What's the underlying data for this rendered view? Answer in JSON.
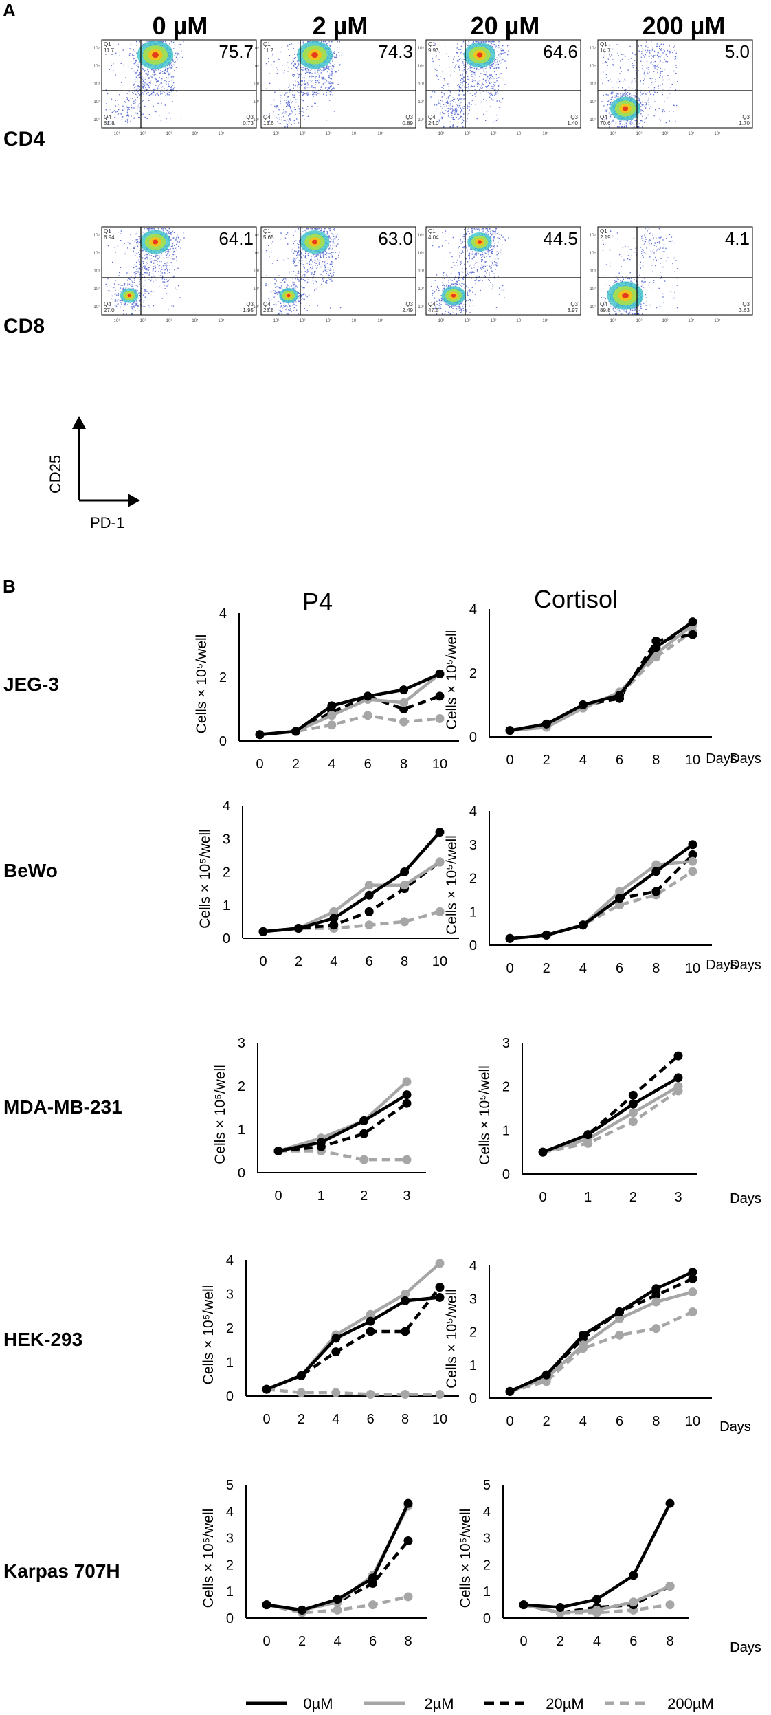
{
  "figure": {
    "panel_a_label": "A",
    "panel_b_label": "B",
    "concentrations": [
      "0 µM",
      "2 µM",
      "20 µM",
      "200 µM"
    ],
    "flow_rows": [
      "CD4",
      "CD8"
    ],
    "flow_axes": {
      "y": "CD25",
      "x": "PD-1"
    },
    "flow_quadrants": [
      [
        {
          "main": "75.7",
          "q1": "11.7",
          "q4": "61.8",
          "q3": "0.73"
        },
        {
          "main": "74.3",
          "q1": "11.2",
          "q4": "13.6",
          "q3": "0.89"
        },
        {
          "main": "64.6",
          "q1": "9.93",
          "q4": "24.0",
          "q3": "1.40"
        },
        {
          "main": "5.0",
          "q1": "14.7",
          "q4": "70.6",
          "q3": "1.70"
        }
      ],
      [
        {
          "main": "64.1",
          "q1": "6.94",
          "q4": "27.0",
          "q3": "1.95"
        },
        {
          "main": "63.0",
          "q1": "5.65",
          "q4": "28.8",
          "q3": "2.49"
        },
        {
          "main": "44.5",
          "q1": "4.04",
          "q4": "47.5",
          "q3": "3.97"
        },
        {
          "main": "4.1",
          "q1": "2.19",
          "q4": "89.8",
          "q3": "3.63"
        }
      ]
    ],
    "quadrant_labels": {
      "q1": "Q1",
      "q4": "Q4",
      "q3": "Q3"
    },
    "flow_axis_ticks": [
      "10¹",
      "10²",
      "10³",
      "10⁴",
      "10⁵"
    ],
    "hormones": [
      "P4",
      "Cortisol"
    ],
    "y_axis_label": "Cells × 10⁵/well",
    "x_axis_label": "Days",
    "legend_labels": [
      "0µM",
      "2µM",
      "20µM",
      "200µM"
    ],
    "series_colors": [
      "#000000",
      "#a6a6a6",
      "#000000",
      "#a6a6a6"
    ]
  },
  "chart_data": [
    {
      "type": "line",
      "cell_line": "JEG-3",
      "hormone": "P4",
      "xlabel": "Days",
      "ylabel": "Cells × 10⁵/well",
      "x": [
        0,
        2,
        4,
        6,
        8,
        10
      ],
      "xticks": [
        "0",
        "2",
        "4",
        "6",
        "8",
        "10"
      ],
      "ylim": [
        0,
        4
      ],
      "yticks": [
        "0",
        "2",
        "4"
      ],
      "series": [
        {
          "name": "0µM",
          "values": [
            0.2,
            0.3,
            1.1,
            1.4,
            1.6,
            2.1
          ]
        },
        {
          "name": "2µM",
          "values": [
            0.2,
            0.3,
            0.8,
            1.3,
            1.2,
            2.1
          ]
        },
        {
          "name": "20µM",
          "values": [
            0.2,
            0.3,
            0.9,
            1.4,
            1.0,
            1.4
          ]
        },
        {
          "name": "200µM",
          "values": [
            0.2,
            0.3,
            0.5,
            0.8,
            0.6,
            0.7
          ]
        }
      ]
    },
    {
      "type": "line",
      "cell_line": "JEG-3",
      "hormone": "Cortisol",
      "xlabel": "Days",
      "ylabel": "Cells × 10⁵/well",
      "x": [
        0,
        2,
        4,
        6,
        8,
        10
      ],
      "xticks": [
        "0",
        "2",
        "4",
        "6",
        "8",
        "10"
      ],
      "ylim": [
        0,
        4
      ],
      "yticks": [
        "0",
        "2",
        "4"
      ],
      "series": [
        {
          "name": "0µM",
          "values": [
            0.2,
            0.4,
            1.0,
            1.3,
            2.8,
            3.6
          ]
        },
        {
          "name": "2µM",
          "values": [
            0.2,
            0.3,
            0.9,
            1.4,
            2.6,
            3.5
          ]
        },
        {
          "name": "20µM",
          "values": [
            0.2,
            0.4,
            1.0,
            1.2,
            3.0,
            3.2
          ]
        },
        {
          "name": "200µM",
          "values": [
            0.2,
            0.3,
            0.9,
            1.3,
            2.5,
            3.3
          ]
        }
      ]
    },
    {
      "type": "line",
      "cell_line": "BeWo",
      "hormone": "P4",
      "xlabel": "Days",
      "ylabel": "Cells × 10⁵/well",
      "x": [
        0,
        2,
        4,
        6,
        8,
        10
      ],
      "xticks": [
        "0",
        "2",
        "4",
        "6",
        "8",
        "10"
      ],
      "ylim": [
        0,
        4
      ],
      "yticks": [
        "0",
        "1",
        "2",
        "3",
        "4"
      ],
      "series": [
        {
          "name": "0µM",
          "values": [
            0.2,
            0.3,
            0.6,
            1.3,
            2.0,
            3.2
          ]
        },
        {
          "name": "2µM",
          "values": [
            0.2,
            0.3,
            0.8,
            1.6,
            1.6,
            2.3
          ]
        },
        {
          "name": "20µM",
          "values": [
            0.2,
            0.3,
            0.4,
            0.8,
            1.5,
            2.3
          ]
        },
        {
          "name": "200µM",
          "values": [
            0.2,
            0.3,
            0.3,
            0.4,
            0.5,
            0.8
          ]
        }
      ]
    },
    {
      "type": "line",
      "cell_line": "BeWo",
      "hormone": "Cortisol",
      "xlabel": "Days",
      "ylabel": "Cells × 10⁵/well",
      "x": [
        0,
        2,
        4,
        6,
        8,
        10
      ],
      "xticks": [
        "0",
        "2",
        "4",
        "6",
        "8",
        "10"
      ],
      "ylim": [
        0,
        4
      ],
      "yticks": [
        "0",
        "1",
        "2",
        "3",
        "4"
      ],
      "series": [
        {
          "name": "0µM",
          "values": [
            0.2,
            0.3,
            0.6,
            1.4,
            2.2,
            3.0
          ]
        },
        {
          "name": "2µM",
          "values": [
            0.2,
            0.3,
            0.6,
            1.6,
            2.4,
            2.5
          ]
        },
        {
          "name": "20µM",
          "values": [
            0.2,
            0.3,
            0.6,
            1.4,
            1.6,
            2.7
          ]
        },
        {
          "name": "200µM",
          "values": [
            0.2,
            0.3,
            0.6,
            1.2,
            1.5,
            2.2
          ]
        }
      ]
    },
    {
      "type": "line",
      "cell_line": "MDA-MB-231",
      "hormone": "P4",
      "xlabel": "Days",
      "ylabel": "Cells × 10⁵/well",
      "x": [
        0,
        1,
        2,
        3
      ],
      "xticks": [
        "0",
        "1",
        "2",
        "3"
      ],
      "ylim": [
        0,
        3
      ],
      "yticks": [
        "0",
        "1",
        "2",
        "3"
      ],
      "series": [
        {
          "name": "0µM",
          "values": [
            0.5,
            0.7,
            1.2,
            1.8
          ]
        },
        {
          "name": "2µM",
          "values": [
            0.5,
            0.8,
            1.2,
            2.1
          ]
        },
        {
          "name": "20µM",
          "values": [
            0.5,
            0.6,
            0.9,
            1.6
          ]
        },
        {
          "name": "200µM",
          "values": [
            0.5,
            0.5,
            0.3,
            0.3
          ]
        }
      ]
    },
    {
      "type": "line",
      "cell_line": "MDA-MB-231",
      "hormone": "Cortisol",
      "xlabel": "Days",
      "ylabel": "Cells × 10⁵/well",
      "x": [
        0,
        1,
        2,
        3
      ],
      "xticks": [
        "0",
        "1",
        "2",
        "3"
      ],
      "ylim": [
        0,
        3
      ],
      "yticks": [
        "0",
        "1",
        "2",
        "3"
      ],
      "series": [
        {
          "name": "0µM",
          "values": [
            0.5,
            0.9,
            1.6,
            2.2
          ]
        },
        {
          "name": "2µM",
          "values": [
            0.5,
            0.8,
            1.4,
            2.0
          ]
        },
        {
          "name": "20µM",
          "values": [
            0.5,
            0.9,
            1.8,
            2.7
          ]
        },
        {
          "name": "200µM",
          "values": [
            0.5,
            0.7,
            1.2,
            1.9
          ]
        }
      ]
    },
    {
      "type": "line",
      "cell_line": "HEK-293",
      "hormone": "P4",
      "xlabel": "Days",
      "ylabel": "Cells × 10⁵/well",
      "x": [
        0,
        2,
        4,
        6,
        8,
        10
      ],
      "xticks": [
        "0",
        "2",
        "4",
        "6",
        "8",
        "10"
      ],
      "ylim": [
        0,
        4
      ],
      "yticks": [
        "0",
        "1",
        "2",
        "3",
        "4"
      ],
      "series": [
        {
          "name": "0µM",
          "values": [
            0.2,
            0.6,
            1.7,
            2.2,
            2.8,
            2.9
          ]
        },
        {
          "name": "2µM",
          "values": [
            0.2,
            0.6,
            1.8,
            2.4,
            3.0,
            3.9
          ]
        },
        {
          "name": "20µM",
          "values": [
            0.2,
            0.6,
            1.3,
            1.9,
            1.9,
            3.2
          ]
        },
        {
          "name": "200µM",
          "values": [
            0.2,
            0.1,
            0.1,
            0.05,
            0.05,
            0.05
          ]
        }
      ]
    },
    {
      "type": "line",
      "cell_line": "HEK-293",
      "hormone": "Cortisol",
      "xlabel": "Days",
      "ylabel": "Cells × 10⁵/well",
      "x": [
        0,
        2,
        4,
        6,
        8,
        10
      ],
      "xticks": [
        "0",
        "2",
        "4",
        "6",
        "8",
        "10"
      ],
      "ylim": [
        0,
        4
      ],
      "yticks": [
        "0",
        "1",
        "2",
        "3",
        "4"
      ],
      "series": [
        {
          "name": "0µM",
          "values": [
            0.2,
            0.7,
            1.9,
            2.6,
            3.3,
            3.8
          ]
        },
        {
          "name": "2µM",
          "values": [
            0.2,
            0.6,
            1.6,
            2.4,
            2.9,
            3.2
          ]
        },
        {
          "name": "20µM",
          "values": [
            0.2,
            0.7,
            1.8,
            2.6,
            3.1,
            3.6
          ]
        },
        {
          "name": "200µM",
          "values": [
            0.2,
            0.5,
            1.5,
            1.9,
            2.1,
            2.6
          ]
        }
      ]
    },
    {
      "type": "line",
      "cell_line": "Karpas 707H",
      "hormone": "P4",
      "xlabel": "Days",
      "ylabel": "Cells × 10⁵/well",
      "x": [
        0,
        2,
        4,
        6,
        8
      ],
      "xticks": [
        "0",
        "2",
        "4",
        "6",
        "8"
      ],
      "ylim": [
        0,
        5
      ],
      "yticks": [
        "0",
        "1",
        "2",
        "3",
        "4",
        "5"
      ],
      "series": [
        {
          "name": "0µM",
          "values": [
            0.5,
            0.3,
            0.7,
            1.5,
            4.3
          ]
        },
        {
          "name": "2µM",
          "values": [
            0.5,
            0.3,
            0.6,
            1.6,
            4.2
          ]
        },
        {
          "name": "20µM",
          "values": [
            0.5,
            0.3,
            0.6,
            1.3,
            2.9
          ]
        },
        {
          "name": "200µM",
          "values": [
            0.5,
            0.2,
            0.3,
            0.5,
            0.8
          ]
        }
      ]
    },
    {
      "type": "line",
      "cell_line": "Karpas 707H",
      "hormone": "Cortisol",
      "xlabel": "Days",
      "ylabel": "Cells × 10⁵/well",
      "x": [
        0,
        2,
        4,
        6,
        8
      ],
      "xticks": [
        "0",
        "2",
        "4",
        "6",
        "8"
      ],
      "ylim": [
        0,
        5
      ],
      "yticks": [
        "0",
        "1",
        "2",
        "3",
        "4",
        "5"
      ],
      "series": [
        {
          "name": "0µM",
          "values": [
            0.5,
            0.4,
            0.7,
            1.6,
            4.3
          ]
        },
        {
          "name": "2µM",
          "values": [
            0.5,
            0.2,
            0.3,
            0.6,
            1.2
          ]
        },
        {
          "name": "20µM",
          "values": [
            0.5,
            0.2,
            0.4,
            0.5,
            1.2
          ]
        },
        {
          "name": "200µM",
          "values": [
            0.5,
            0.2,
            0.2,
            0.3,
            0.5
          ]
        }
      ]
    }
  ]
}
